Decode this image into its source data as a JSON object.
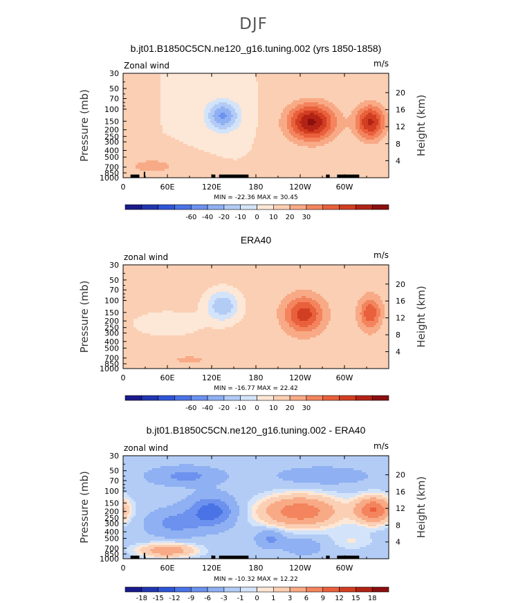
{
  "figure": {
    "title": "DJF"
  },
  "chart_data": [
    {
      "type": "heatmap",
      "title": "b.jt01.B1850C5CN.ne120_g16.tuning.002 (yrs 1850-1858)",
      "left_label": "Zonal wind",
      "units": "m/s",
      "ylabel": "Pressure (mb)",
      "ylabel_right": "Height (km)",
      "x_ticks": [
        "0",
        "60E",
        "120E",
        "180",
        "120W",
        "60W"
      ],
      "x_tick_values": [
        0,
        60,
        120,
        180,
        240,
        300
      ],
      "xlim": [
        0,
        360
      ],
      "y_ticks": [
        "30",
        "50",
        "70",
        "100",
        "150",
        "200",
        "250",
        "300",
        "400",
        "500",
        "700",
        "850",
        "1000"
      ],
      "y_tick_values": [
        30,
        50,
        70,
        100,
        150,
        200,
        250,
        300,
        400,
        500,
        700,
        850,
        1000
      ],
      "ylim": [
        1000,
        30
      ],
      "y_scale": "log",
      "height_ticks": [
        "20",
        "16",
        "12",
        "8",
        "4"
      ],
      "height_tick_values": [
        20,
        16,
        12,
        8,
        4
      ],
      "stats_text": "MIN = -22.36   MAX =  30.45",
      "min": -22.36,
      "max": 30.45,
      "colorbar_labels": [
        "-60",
        "-40",
        "-20",
        "-10",
        "0",
        "10",
        "20",
        "30"
      ],
      "levels": [
        -70,
        -60,
        -50,
        -40,
        -30,
        -20,
        -15,
        -10,
        -5,
        0,
        5,
        10,
        15,
        20,
        25,
        30,
        35
      ],
      "background": 0,
      "features": [
        {
          "lon": 255,
          "p": 155,
          "amp": 31,
          "slon": 32,
          "sz": 0.62
        },
        {
          "lon": 335,
          "p": 155,
          "amp": 26,
          "slon": 20,
          "sz": 0.58
        },
        {
          "lon": 135,
          "p": 125,
          "amp": -21,
          "slon": 22,
          "sz": 0.5
        },
        {
          "lon": 40,
          "p": 680,
          "amp": 7,
          "slon": 40,
          "sz": 0.3
        },
        {
          "lon": 210,
          "p": 700,
          "amp": 5,
          "slon": 20,
          "sz": 0.25
        }
      ],
      "topography": [
        [
          10,
          22,
          1000,
          900
        ],
        [
          28,
          30,
          1000,
          820
        ],
        [
          120,
          125,
          1000,
          900
        ],
        [
          130,
          170,
          1000,
          900
        ],
        [
          275,
          280,
          1000,
          900
        ],
        [
          290,
          320,
          1000,
          900
        ]
      ]
    },
    {
      "type": "heatmap",
      "title": "ERA40",
      "left_label": "zonal wind",
      "units": "m/s",
      "ylabel": "Pressure (mb)",
      "ylabel_right": "Height (km)",
      "x_ticks": [
        "0",
        "60E",
        "120E",
        "180",
        "120W",
        "60W"
      ],
      "x_tick_values": [
        0,
        60,
        120,
        180,
        240,
        300
      ],
      "xlim": [
        0,
        360
      ],
      "y_ticks": [
        "30",
        "50",
        "70",
        "100",
        "150",
        "200",
        "250",
        "300",
        "400",
        "500",
        "700",
        "850",
        "1000"
      ],
      "y_tick_values": [
        30,
        50,
        70,
        100,
        150,
        200,
        250,
        300,
        400,
        500,
        700,
        850,
        1000
      ],
      "ylim": [
        1000,
        30
      ],
      "y_scale": "log",
      "height_ticks": [
        "20",
        "16",
        "12",
        "8",
        "4"
      ],
      "height_tick_values": [
        20,
        16,
        12,
        8,
        4
      ],
      "stats_text": "MIN = -16.77   MAX =  22.42",
      "min": -16.77,
      "max": 22.42,
      "colorbar_labels": [
        "-60",
        "-40",
        "-20",
        "-10",
        "0",
        "10",
        "20",
        "30"
      ],
      "levels": [
        -70,
        -60,
        -50,
        -40,
        -30,
        -20,
        -15,
        -10,
        -5,
        0,
        5,
        10,
        15,
        20,
        25,
        30,
        35
      ],
      "background": 2,
      "features": [
        {
          "lon": 245,
          "p": 160,
          "amp": 21,
          "slon": 26,
          "sz": 0.6
        },
        {
          "lon": 335,
          "p": 155,
          "amp": 17,
          "slon": 15,
          "sz": 0.55
        },
        {
          "lon": 135,
          "p": 120,
          "amp": -17,
          "slon": 22,
          "sz": 0.5
        },
        {
          "lon": 60,
          "p": 220,
          "amp": -6,
          "slon": 45,
          "sz": 0.4
        },
        {
          "lon": 90,
          "p": 750,
          "amp": 4,
          "slon": 30,
          "sz": 0.2
        }
      ],
      "topography": []
    },
    {
      "type": "heatmap",
      "title": "b.jt01.B1850C5CN.ne120_g16.tuning.002 - ERA40",
      "left_label": "zonal wind",
      "units": "m/s",
      "ylabel": "Pressure (mb)",
      "ylabel_right": "Height (km)",
      "x_ticks": [
        "0",
        "60E",
        "120E",
        "180",
        "120W",
        "60W"
      ],
      "x_tick_values": [
        0,
        60,
        120,
        180,
        240,
        300
      ],
      "xlim": [
        0,
        360
      ],
      "y_ticks": [
        "30",
        "50",
        "70",
        "100",
        "150",
        "200",
        "250",
        "300",
        "400",
        "500",
        "700",
        "850",
        "1000"
      ],
      "y_tick_values": [
        30,
        50,
        70,
        100,
        150,
        200,
        250,
        300,
        400,
        500,
        700,
        850,
        1000
      ],
      "ylim": [
        1000,
        30
      ],
      "y_scale": "log",
      "height_ticks": [
        "20",
        "16",
        "12",
        "8",
        "4"
      ],
      "height_tick_values": [
        20,
        16,
        12,
        8,
        4
      ],
      "stats_text": "MIN = -10.32   MAX =  12.22",
      "min": -10.32,
      "max": 12.22,
      "colorbar_labels": [
        "-18",
        "-15",
        "-12",
        "-9",
        "-6",
        "-3",
        "-1",
        "0",
        "1",
        "3",
        "6",
        "9",
        "12",
        "15",
        "18"
      ],
      "levels": [
        -21,
        -18,
        -15,
        -12,
        -9,
        -6,
        -3,
        -1,
        0,
        1,
        3,
        6,
        9,
        12,
        15,
        18,
        21
      ],
      "background": -2,
      "features": [
        {
          "lon": 240,
          "p": 200,
          "amp": 10,
          "slon": 55,
          "sz": 0.55
        },
        {
          "lon": 340,
          "p": 190,
          "amp": 11,
          "slon": 25,
          "sz": 0.45
        },
        {
          "lon": 270,
          "p": 60,
          "amp": -3,
          "slon": 60,
          "sz": 0.3
        },
        {
          "lon": 85,
          "p": 60,
          "amp": -5,
          "slon": 45,
          "sz": 0.3
        },
        {
          "lon": 120,
          "p": 200,
          "amp": -9,
          "slon": 30,
          "sz": 0.5
        },
        {
          "lon": 70,
          "p": 300,
          "amp": -5,
          "slon": 35,
          "sz": 0.45
        },
        {
          "lon": 60,
          "p": 750,
          "amp": 7,
          "slon": 40,
          "sz": 0.25
        },
        {
          "lon": 200,
          "p": 500,
          "amp": -5,
          "slon": 18,
          "sz": 0.3
        },
        {
          "lon": 245,
          "p": 650,
          "amp": -3,
          "slon": 25,
          "sz": 0.3
        },
        {
          "lon": 310,
          "p": 550,
          "amp": 2,
          "slon": 30,
          "sz": 0.3
        }
      ],
      "topography": [
        [
          10,
          22,
          1000,
          900
        ],
        [
          28,
          30,
          1000,
          820
        ],
        [
          120,
          125,
          1000,
          900
        ],
        [
          130,
          170,
          1000,
          900
        ],
        [
          275,
          280,
          1000,
          900
        ],
        [
          290,
          320,
          1000,
          900
        ]
      ]
    }
  ],
  "colors": {
    "scale": [
      "#1a1a8c",
      "#2236b0",
      "#2f55d6",
      "#4a73e6",
      "#6c91ee",
      "#8fb0f2",
      "#b3ccf6",
      "#d3e4fa",
      "#fde7d6",
      "#fbcfb3",
      "#f8aa86",
      "#f3845d",
      "#e9603c",
      "#d23e21",
      "#b22315",
      "#8b0f0f"
    ]
  }
}
